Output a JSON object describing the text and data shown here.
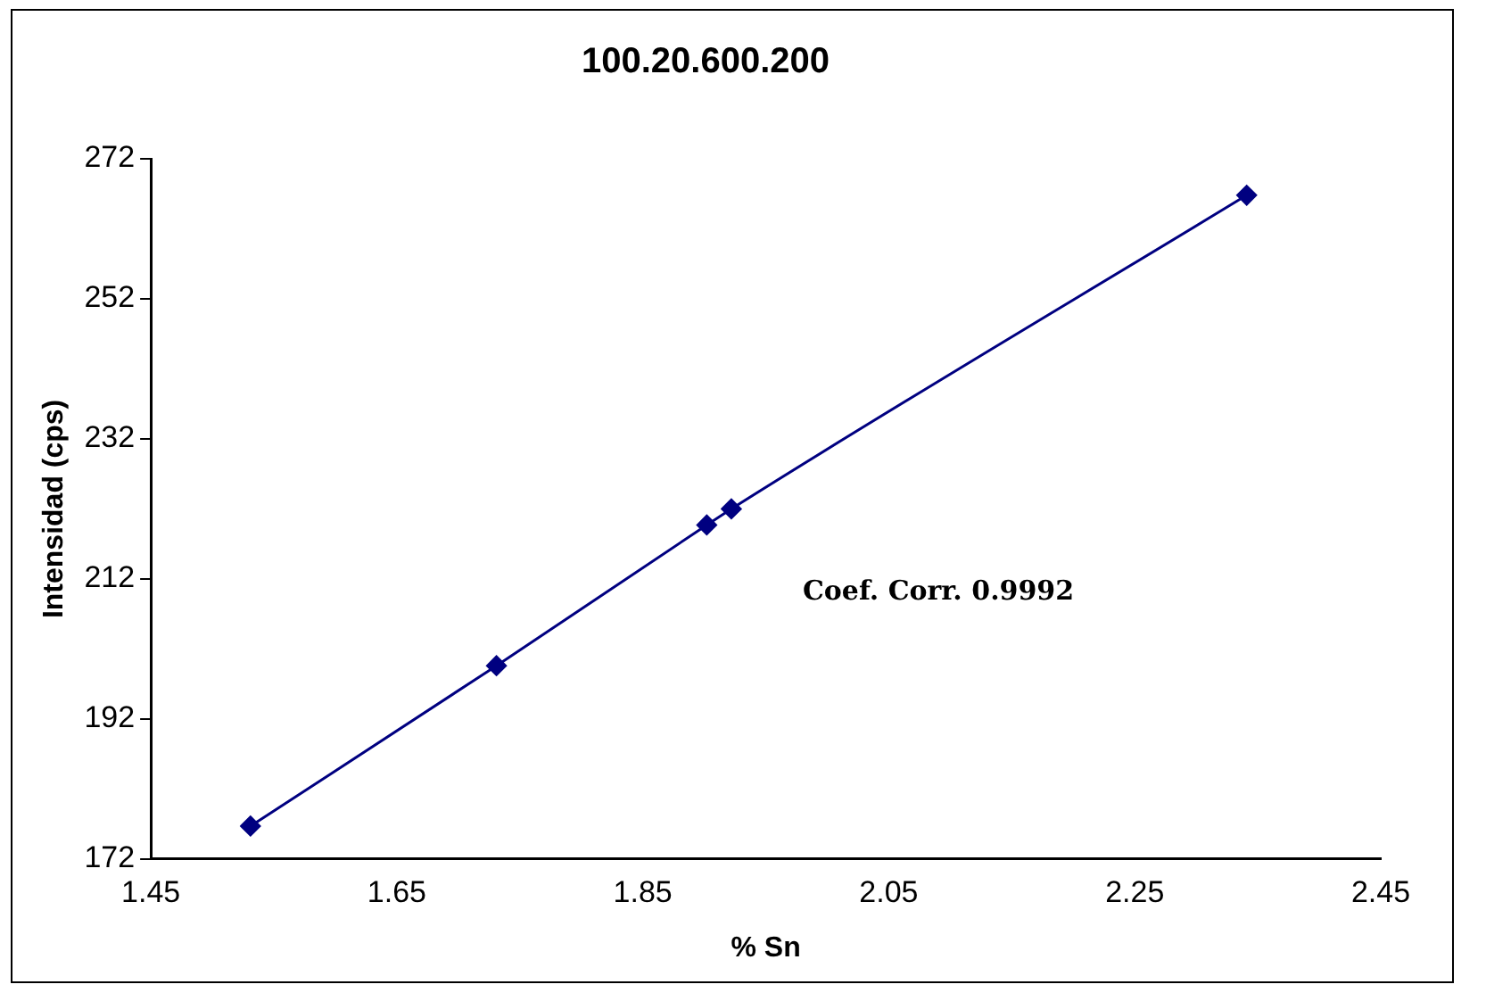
{
  "chart_data": {
    "type": "line",
    "title": "100.20.600.200",
    "xlabel": "% Sn",
    "ylabel": "Intensidad (cps)",
    "x": [
      1.531,
      1.731,
      1.902,
      1.922,
      2.341
    ],
    "series": [
      {
        "color": "#000080",
        "values": [
          176.7,
          199.6,
          219.7,
          222.0,
          266.8
        ]
      }
    ],
    "xlim": [
      1.45,
      2.45
    ],
    "xticks": [
      1.45,
      1.65,
      1.85,
      2.05,
      2.25,
      2.45
    ],
    "ylim": [
      172,
      272
    ],
    "yticks": [
      172,
      192,
      212,
      232,
      252,
      272
    ],
    "grid": false,
    "legend": false,
    "marker": "diamond",
    "line_style": "solid",
    "annotations": [
      "Coef. Corr. 0.9992"
    ]
  }
}
